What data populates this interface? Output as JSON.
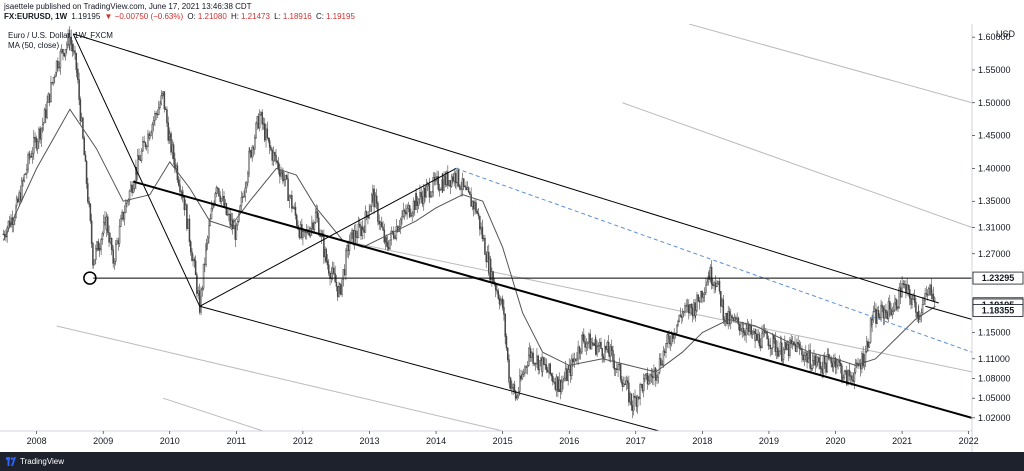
{
  "header": {
    "published": "jsaettele published on TradingView.com, June 17, 2021 13:46:38 CDT",
    "symbol": "FX:EURUSD, 1W",
    "last": "1.19195",
    "change": "▼ −0.00750 (−0.63%)",
    "open_label": "O:",
    "open": "1.21080",
    "high_label": "H:",
    "high": "1.21473",
    "low_label": "L:",
    "low": "1.18916",
    "close_label": "C:",
    "close": "1.19195"
  },
  "legend": {
    "series_title": "Euro / U.S. Dollar, 1W, FXCM",
    "ma_title": "MA (50, close)"
  },
  "footer": {
    "brand": "TradingView"
  },
  "colors": {
    "candle": "#444444",
    "ma": "#555555",
    "trendline": "#000000",
    "channel": "#bbbbbb",
    "dashed": "#5b8fd6",
    "axis_text": "#131722"
  },
  "chart_data": {
    "type": "candlestick",
    "y_axis_unit": "USD",
    "ylim": [
      1.0,
      1.62
    ],
    "xlim": [
      2007.45,
      2022.05
    ],
    "y_ticks": [
      "1.60000",
      "1.55000",
      "1.50000",
      "1.45000",
      "1.40000",
      "1.35000",
      "1.31000",
      "1.27000",
      "1.23295",
      "1.19381",
      "1.19195",
      "1.18355",
      "1.15000",
      "1.11000",
      "1.08000",
      "1.05000",
      "1.02000"
    ],
    "y_tick_values": [
      1.6,
      1.55,
      1.5,
      1.45,
      1.4,
      1.35,
      1.31,
      1.27,
      1.23295,
      1.19381,
      1.19195,
      1.18355,
      1.15,
      1.11,
      1.08,
      1.05,
      1.02
    ],
    "x_ticks": [
      "2008",
      "2009",
      "2010",
      "2011",
      "2012",
      "2013",
      "2014",
      "2015",
      "2016",
      "2017",
      "2018",
      "2019",
      "2020",
      "2021",
      "2022"
    ],
    "x_tick_values": [
      2008,
      2009,
      2010,
      2011,
      2012,
      2013,
      2014,
      2015,
      2016,
      2017,
      2018,
      2019,
      2020,
      2021,
      2022
    ],
    "price_labels": [
      {
        "value": 1.23295,
        "text": "1.23295"
      },
      {
        "value": 1.19381,
        "text": "1.19381"
      },
      {
        "value": 1.19195,
        "text": "1.19195"
      },
      {
        "value": 1.18355,
        "text": "1.18355"
      }
    ],
    "price_path": [
      [
        2007.5,
        1.3
      ],
      [
        2007.7,
        1.34
      ],
      [
        2007.9,
        1.42
      ],
      [
        2008.1,
        1.47
      ],
      [
        2008.3,
        1.56
      ],
      [
        2008.5,
        1.6
      ],
      [
        2008.6,
        1.55
      ],
      [
        2008.75,
        1.38
      ],
      [
        2008.85,
        1.26
      ],
      [
        2008.95,
        1.29
      ],
      [
        2009.05,
        1.32
      ],
      [
        2009.15,
        1.26
      ],
      [
        2009.3,
        1.33
      ],
      [
        2009.5,
        1.4
      ],
      [
        2009.7,
        1.46
      ],
      [
        2009.9,
        1.51
      ],
      [
        2010.0,
        1.44
      ],
      [
        2010.2,
        1.36
      ],
      [
        2010.35,
        1.26
      ],
      [
        2010.45,
        1.19
      ],
      [
        2010.55,
        1.28
      ],
      [
        2010.7,
        1.38
      ],
      [
        2010.85,
        1.33
      ],
      [
        2011.0,
        1.3
      ],
      [
        2011.2,
        1.42
      ],
      [
        2011.35,
        1.48
      ],
      [
        2011.5,
        1.43
      ],
      [
        2011.7,
        1.39
      ],
      [
        2011.85,
        1.34
      ],
      [
        2012.0,
        1.29
      ],
      [
        2012.2,
        1.33
      ],
      [
        2012.35,
        1.26
      ],
      [
        2012.55,
        1.21
      ],
      [
        2012.7,
        1.29
      ],
      [
        2012.9,
        1.31
      ],
      [
        2013.05,
        1.36
      ],
      [
        2013.25,
        1.28
      ],
      [
        2013.45,
        1.32
      ],
      [
        2013.7,
        1.35
      ],
      [
        2013.9,
        1.37
      ],
      [
        2014.1,
        1.38
      ],
      [
        2014.3,
        1.39
      ],
      [
        2014.45,
        1.36
      ],
      [
        2014.6,
        1.34
      ],
      [
        2014.8,
        1.25
      ],
      [
        2015.0,
        1.19
      ],
      [
        2015.1,
        1.08
      ],
      [
        2015.2,
        1.05
      ],
      [
        2015.4,
        1.12
      ],
      [
        2015.6,
        1.1
      ],
      [
        2015.85,
        1.07
      ],
      [
        2016.0,
        1.09
      ],
      [
        2016.2,
        1.14
      ],
      [
        2016.4,
        1.13
      ],
      [
        2016.6,
        1.12
      ],
      [
        2016.8,
        1.08
      ],
      [
        2016.95,
        1.04
      ],
      [
        2017.1,
        1.07
      ],
      [
        2017.3,
        1.09
      ],
      [
        2017.5,
        1.14
      ],
      [
        2017.7,
        1.18
      ],
      [
        2017.9,
        1.19
      ],
      [
        2018.1,
        1.24
      ],
      [
        2018.2,
        1.23
      ],
      [
        2018.35,
        1.17
      ],
      [
        2018.6,
        1.16
      ],
      [
        2018.8,
        1.14
      ],
      [
        2019.0,
        1.14
      ],
      [
        2019.2,
        1.12
      ],
      [
        2019.4,
        1.13
      ],
      [
        2019.6,
        1.11
      ],
      [
        2019.8,
        1.1
      ],
      [
        2020.0,
        1.11
      ],
      [
        2020.15,
        1.08
      ],
      [
        2020.3,
        1.09
      ],
      [
        2020.45,
        1.12
      ],
      [
        2020.55,
        1.17
      ],
      [
        2020.7,
        1.18
      ],
      [
        2020.9,
        1.19
      ],
      [
        2021.0,
        1.22
      ],
      [
        2021.15,
        1.2
      ],
      [
        2021.25,
        1.18
      ],
      [
        2021.4,
        1.21
      ],
      [
        2021.45,
        1.22
      ],
      [
        2021.5,
        1.19
      ]
    ],
    "ma_path": [
      [
        2007.5,
        1.29
      ],
      [
        2008.0,
        1.4
      ],
      [
        2008.5,
        1.49
      ],
      [
        2008.9,
        1.43
      ],
      [
        2009.3,
        1.35
      ],
      [
        2009.7,
        1.36
      ],
      [
        2010.0,
        1.41
      ],
      [
        2010.3,
        1.37
      ],
      [
        2010.6,
        1.32
      ],
      [
        2010.9,
        1.31
      ],
      [
        2011.2,
        1.35
      ],
      [
        2011.6,
        1.4
      ],
      [
        2011.9,
        1.39
      ],
      [
        2012.2,
        1.34
      ],
      [
        2012.6,
        1.29
      ],
      [
        2012.9,
        1.28
      ],
      [
        2013.3,
        1.3
      ],
      [
        2013.7,
        1.32
      ],
      [
        2014.0,
        1.34
      ],
      [
        2014.4,
        1.36
      ],
      [
        2014.7,
        1.35
      ],
      [
        2015.0,
        1.28
      ],
      [
        2015.3,
        1.18
      ],
      [
        2015.6,
        1.12
      ],
      [
        2016.0,
        1.1
      ],
      [
        2016.5,
        1.11
      ],
      [
        2016.9,
        1.1
      ],
      [
        2017.3,
        1.09
      ],
      [
        2017.7,
        1.12
      ],
      [
        2018.0,
        1.15
      ],
      [
        2018.4,
        1.17
      ],
      [
        2018.8,
        1.16
      ],
      [
        2019.2,
        1.14
      ],
      [
        2019.6,
        1.12
      ],
      [
        2020.0,
        1.11
      ],
      [
        2020.3,
        1.1
      ],
      [
        2020.6,
        1.11
      ],
      [
        2020.9,
        1.14
      ],
      [
        2021.2,
        1.17
      ],
      [
        2021.5,
        1.19
      ]
    ],
    "trendlines": [
      {
        "style": "solid",
        "weight": 1,
        "points": [
          [
            2008.55,
            1.605
          ],
          [
            2021.55,
            1.195
          ]
        ]
      },
      {
        "style": "solid",
        "weight": 1,
        "points": [
          [
            2008.55,
            1.605
          ],
          [
            2010.45,
            1.19
          ]
        ]
      },
      {
        "style": "solid",
        "weight": 1,
        "points": [
          [
            2010.45,
            1.19
          ],
          [
            2014.3,
            1.4
          ]
        ]
      },
      {
        "style": "solid",
        "weight": 2,
        "points": [
          [
            2009.45,
            1.38
          ],
          [
            2022.05,
            1.02
          ]
        ]
      },
      {
        "style": "solid",
        "weight": 1,
        "points": [
          [
            2010.45,
            1.19
          ],
          [
            2017.35,
            1.0
          ]
        ]
      },
      {
        "style": "dashed",
        "weight": 1,
        "points": [
          [
            2014.3,
            1.4
          ],
          [
            2022.05,
            1.12
          ]
        ]
      },
      {
        "style": "solid",
        "weight": 1,
        "points": [
          [
            2021.35,
            1.19
          ],
          [
            2022.05,
            1.17
          ]
        ]
      },
      {
        "style": "h",
        "weight": 1,
        "value": 1.23295,
        "from": 2008.85,
        "to": 2022.05
      }
    ],
    "channel_lines": [
      [
        [
          2017.8,
          1.62
        ],
        [
          2022.05,
          1.5
        ]
      ],
      [
        [
          2016.8,
          1.5
        ],
        [
          2022.05,
          1.31
        ]
      ],
      [
        [
          2012.6,
          1.29
        ],
        [
          2022.05,
          1.09
        ]
      ],
      [
        [
          2008.3,
          1.16
        ],
        [
          2015.0,
          1.0
        ]
      ],
      [
        [
          2009.9,
          1.05
        ],
        [
          2011.4,
          1.0
        ]
      ]
    ],
    "marker": {
      "x": 2008.8,
      "y": 1.23295
    }
  }
}
